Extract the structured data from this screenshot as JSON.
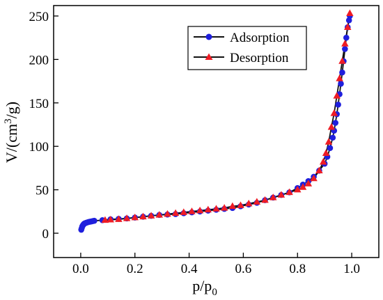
{
  "chart_data": {
    "type": "line",
    "xlabel_main": "p/p",
    "xlabel_sub": "0",
    "ylabel_pre": "V/(cm",
    "ylabel_sup": "3",
    "ylabel_post": "/g)",
    "xlim": [
      -0.1,
      1.1
    ],
    "ylim": [
      -28,
      262
    ],
    "xticks": [
      0.0,
      0.2,
      0.4,
      0.6,
      0.8,
      1.0
    ],
    "xtick_labels": [
      "0.0",
      "0.2",
      "0.4",
      "0.6",
      "0.8",
      "1.0"
    ],
    "yticks": [
      0,
      50,
      100,
      150,
      200,
      250
    ],
    "ytick_labels": [
      "0",
      "50",
      "100",
      "150",
      "200",
      "250"
    ],
    "grid": false,
    "legend_position": "top-right",
    "series": [
      {
        "name": "Adsorption",
        "color": "#1f1fdd",
        "marker": "circle",
        "x": [
          0.002,
          0.004,
          0.006,
          0.008,
          0.01,
          0.013,
          0.016,
          0.02,
          0.025,
          0.03,
          0.035,
          0.04,
          0.045,
          0.05,
          0.08,
          0.11,
          0.14,
          0.17,
          0.2,
          0.23,
          0.26,
          0.29,
          0.32,
          0.35,
          0.38,
          0.41,
          0.44,
          0.47,
          0.5,
          0.53,
          0.56,
          0.59,
          0.62,
          0.65,
          0.68,
          0.71,
          0.74,
          0.77,
          0.8,
          0.82,
          0.84,
          0.86,
          0.88,
          0.9,
          0.91,
          0.92,
          0.93,
          0.935,
          0.94,
          0.945,
          0.95,
          0.955,
          0.96,
          0.965,
          0.97,
          0.975,
          0.98,
          0.985,
          0.99,
          0.993
        ],
        "y": [
          4,
          6,
          8,
          9,
          10,
          11,
          11.5,
          12,
          12.5,
          13,
          13.3,
          13.6,
          14,
          14.3,
          15,
          16,
          16.5,
          17,
          18,
          19,
          20,
          21,
          21.5,
          22,
          23,
          24,
          25,
          26,
          27,
          28,
          29,
          31,
          33,
          35,
          38,
          41,
          44,
          47,
          52,
          56,
          60,
          65,
          72,
          80,
          88,
          98,
          110,
          118,
          127,
          137,
          148,
          160,
          172,
          185,
          198,
          212,
          225,
          237,
          245,
          250
        ]
      },
      {
        "name": "Desorption",
        "color": "#ee1c24",
        "marker": "triangle",
        "x": [
          0.993,
          0.985,
          0.975,
          0.965,
          0.955,
          0.945,
          0.935,
          0.925,
          0.915,
          0.905,
          0.895,
          0.88,
          0.86,
          0.84,
          0.82,
          0.8,
          0.77,
          0.74,
          0.71,
          0.68,
          0.65,
          0.62,
          0.59,
          0.56,
          0.53,
          0.5,
          0.47,
          0.44,
          0.41,
          0.38,
          0.35,
          0.32,
          0.29,
          0.26,
          0.23,
          0.2,
          0.17,
          0.14,
          0.11,
          0.09
        ],
        "y": [
          253,
          237,
          218,
          198,
          178,
          158,
          138,
          122,
          105,
          92,
          82,
          72,
          63,
          57,
          53,
          50,
          47,
          44,
          41,
          38,
          36,
          34,
          32,
          31,
          29,
          28,
          27,
          26,
          25,
          24,
          23,
          22,
          21,
          20,
          19,
          18,
          17,
          16,
          15.5,
          15
        ]
      }
    ]
  }
}
